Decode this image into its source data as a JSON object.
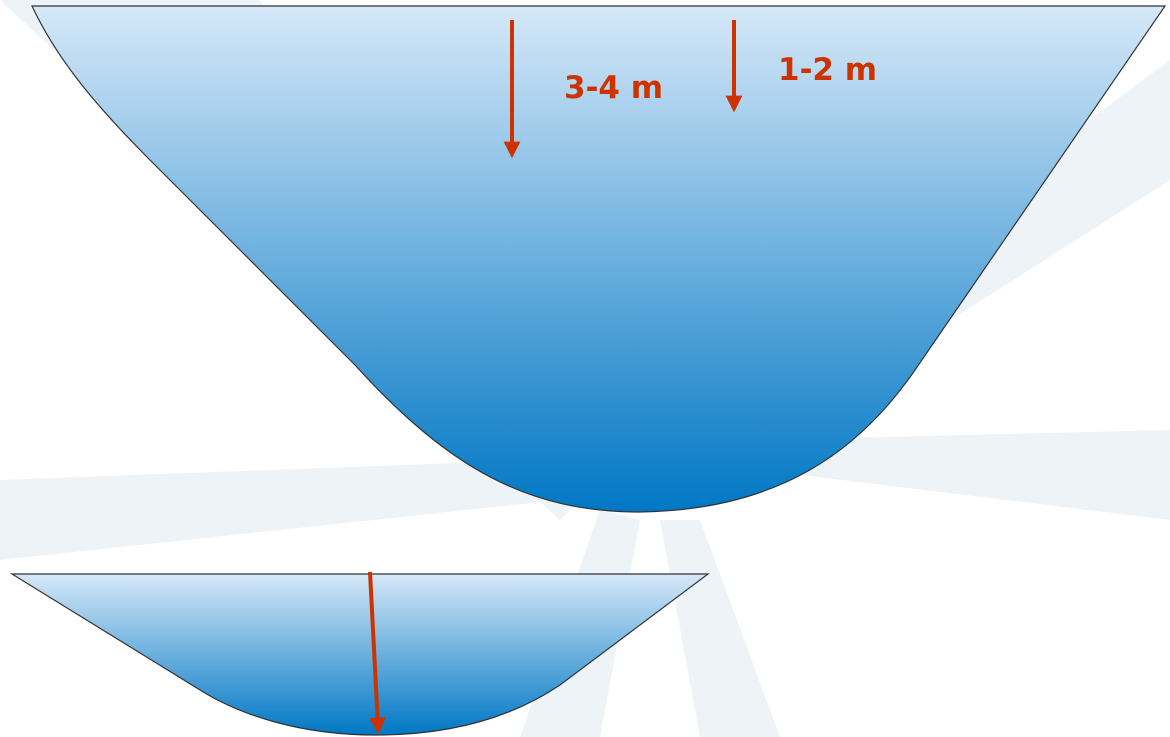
{
  "colors": {
    "background": "#ffffff",
    "background_rays": "#eef3f7",
    "water_top": "#d6e8f8",
    "water_bottom": "#0077c4",
    "outline": "#333333",
    "arrow": "#cc3300",
    "label": "#cc3300"
  },
  "labels": {
    "deep_depth": "3-4 m",
    "shallow_depth": "1-2 m"
  }
}
